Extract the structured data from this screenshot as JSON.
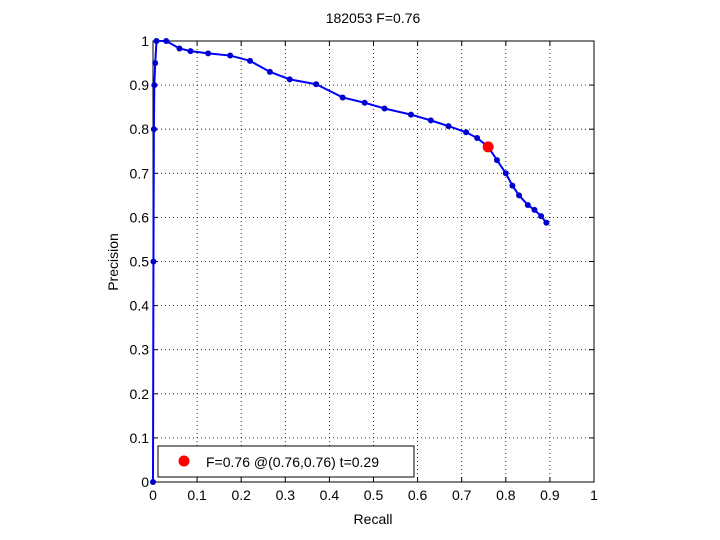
{
  "chart_data": {
    "type": "line",
    "title": "182053 F=0.76",
    "xlabel": "Recall",
    "ylabel": "Precision",
    "xlim": [
      0,
      1
    ],
    "ylim": [
      0,
      1
    ],
    "x_ticks": [
      "0",
      "0.1",
      "0.2",
      "0.3",
      "0.4",
      "0.5",
      "0.6",
      "0.7",
      "0.8",
      "0.9",
      "1"
    ],
    "y_ticks": [
      "0",
      "0.1",
      "0.2",
      "0.3",
      "0.4",
      "0.5",
      "0.6",
      "0.7",
      "0.8",
      "0.9",
      "1"
    ],
    "grid": true,
    "legend_position": "bottom-left",
    "colors": {
      "series": "#0000ff",
      "marker": "#0000cc",
      "highlight": "#ff0000"
    },
    "series": [
      {
        "x": [
          0.0,
          0.001,
          0.002,
          0.003,
          0.005,
          0.008,
          0.03,
          0.06,
          0.085,
          0.125,
          0.175,
          0.22,
          0.265,
          0.31,
          0.37,
          0.43,
          0.48,
          0.525,
          0.585,
          0.63,
          0.67,
          0.71,
          0.735,
          0.76,
          0.78,
          0.8,
          0.815,
          0.83,
          0.85,
          0.865,
          0.88,
          0.892
        ],
        "y": [
          0.0,
          0.5,
          0.8,
          0.9,
          0.95,
          1.0,
          1.0,
          0.983,
          0.977,
          0.972,
          0.967,
          0.955,
          0.93,
          0.913,
          0.902,
          0.872,
          0.86,
          0.847,
          0.833,
          0.82,
          0.807,
          0.793,
          0.78,
          0.76,
          0.73,
          0.7,
          0.672,
          0.65,
          0.628,
          0.617,
          0.603,
          0.588
        ]
      }
    ],
    "highlight_point": {
      "x": 0.76,
      "y": 0.76
    },
    "legend": {
      "label": "F=0.76 @(0.76,0.76) t=0.29"
    }
  }
}
